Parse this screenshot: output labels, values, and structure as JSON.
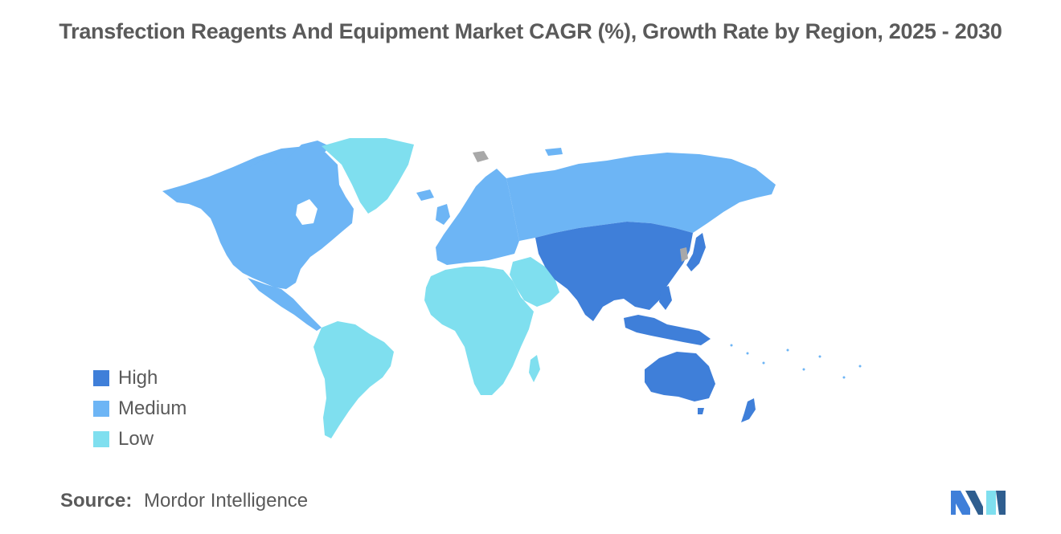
{
  "title": "Transfection Reagents And Equipment Market CAGR (%), Growth Rate by Region, 2025 - 2030",
  "legend": [
    {
      "label": "High",
      "color": "#3f7fd9"
    },
    {
      "label": "Medium",
      "color": "#6db5f5"
    },
    {
      "label": "Low",
      "color": "#7fdfef"
    }
  ],
  "source": {
    "label": "Source:",
    "value": "Mordor Intelligence"
  },
  "colors": {
    "high": "#3f7fd9",
    "medium": "#6db5f5",
    "low": "#7fdfef",
    "nodata": "#a8a8a8"
  },
  "regions": [
    {
      "name": "North America",
      "level": "medium"
    },
    {
      "name": "Europe",
      "level": "medium"
    },
    {
      "name": "Russia",
      "level": "medium"
    },
    {
      "name": "Asia Pacific",
      "level": "high"
    },
    {
      "name": "Australia and New Zealand",
      "level": "high"
    },
    {
      "name": "South America",
      "level": "low"
    },
    {
      "name": "Africa",
      "level": "low"
    },
    {
      "name": "Middle East",
      "level": "low"
    },
    {
      "name": "Greenland",
      "level": "low"
    }
  ]
}
